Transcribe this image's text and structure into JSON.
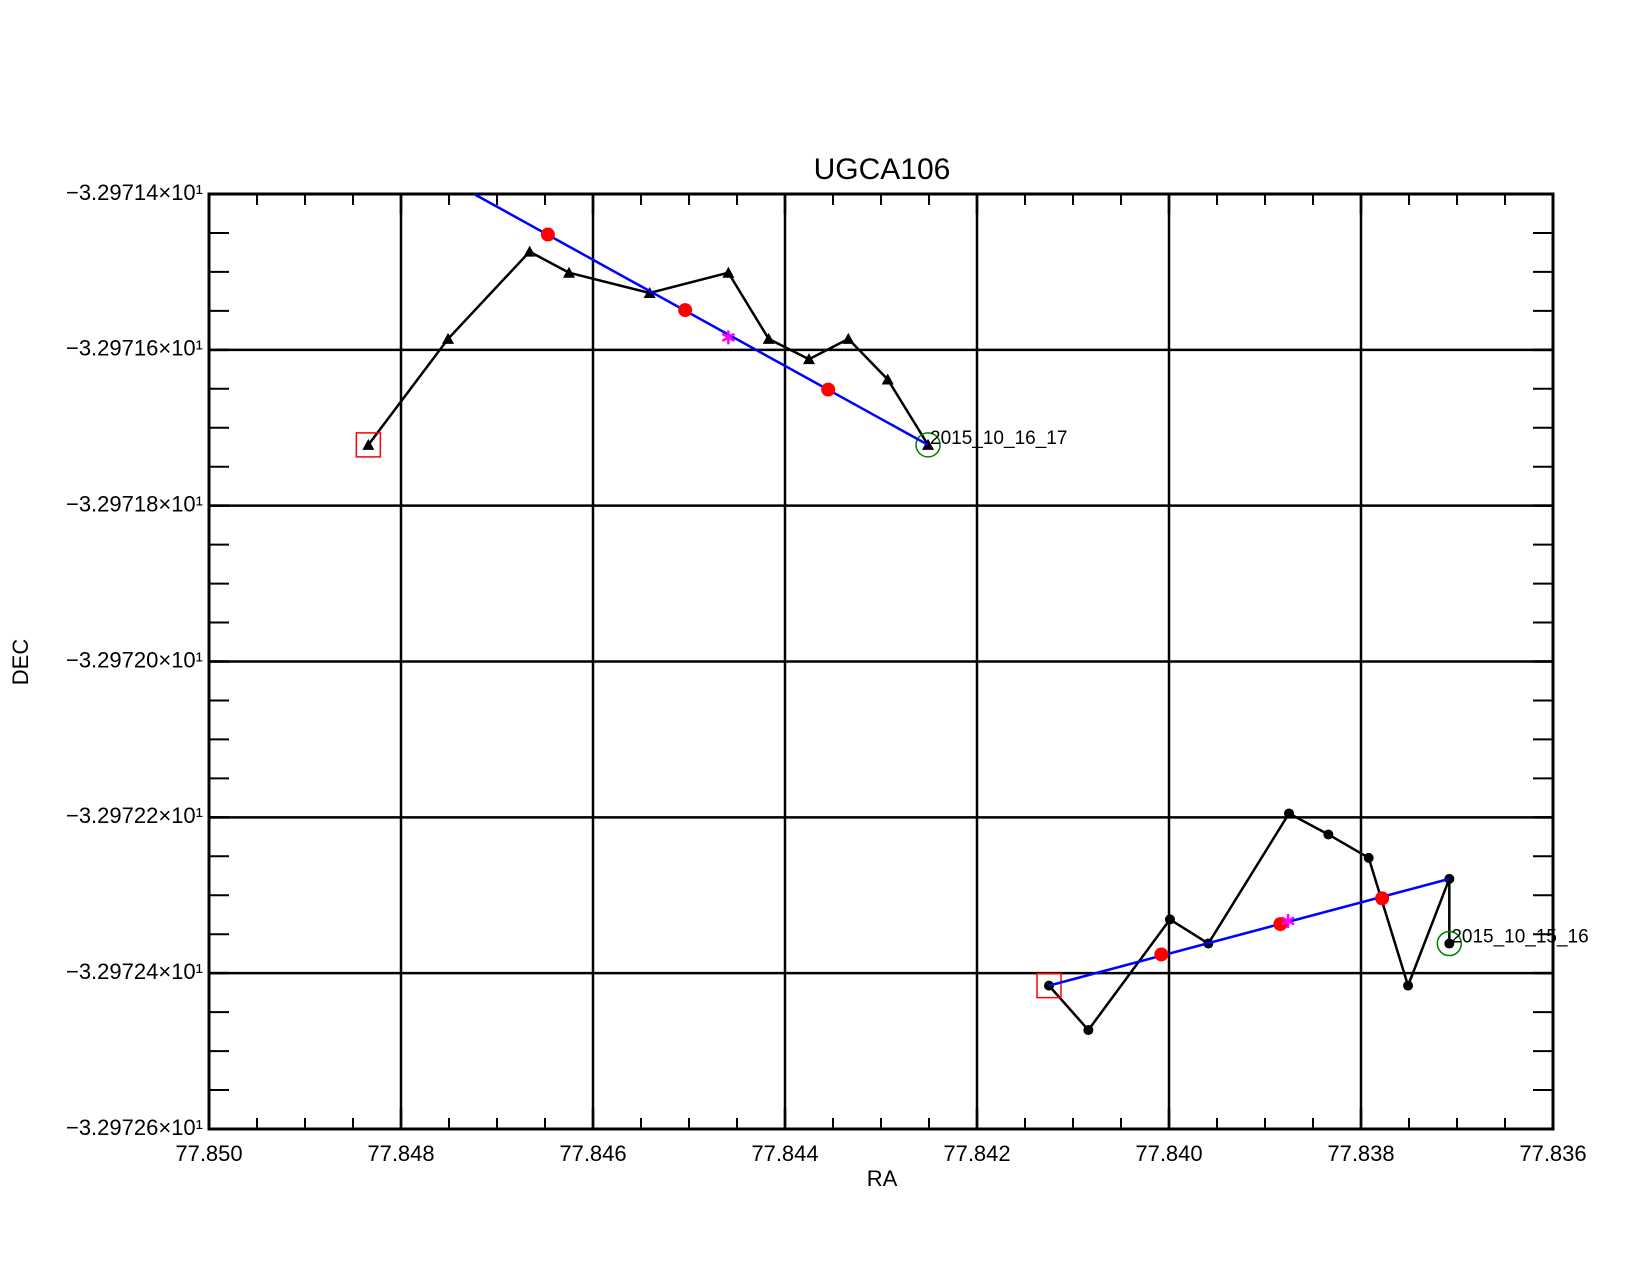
{
  "chart_data": {
    "type": "line",
    "title": "UGCA106",
    "x_label": "RA",
    "y_label": "DEC",
    "xlim": [
      77.85,
      77.836
    ],
    "xticks": [
      {
        "value": 77.85,
        "label": "77.850"
      },
      {
        "value": 77.848,
        "label": "77.848"
      },
      {
        "value": 77.846,
        "label": "77.846"
      },
      {
        "value": 77.844,
        "label": "77.844"
      },
      {
        "value": 77.842,
        "label": "77.842"
      },
      {
        "value": 77.84,
        "label": "77.840"
      },
      {
        "value": 77.838,
        "label": "77.838"
      },
      {
        "value": 77.836,
        "label": "77.836"
      }
    ],
    "ylim": [
      -32.9726,
      -32.9714
    ],
    "yticks": [
      {
        "value": -32.9726,
        "label": "−3.29726×10¹"
      },
      {
        "value": -32.9724,
        "label": "−3.29724×10¹"
      },
      {
        "value": -32.9722,
        "label": "−3.29722×10¹"
      },
      {
        "value": -32.972,
        "label": "−3.29720×10¹"
      },
      {
        "value": -32.9718,
        "label": "−3.29718×10¹"
      },
      {
        "value": -32.9716,
        "label": "−3.29716×10¹"
      },
      {
        "value": -32.9714,
        "label": "−3.29714×10¹"
      }
    ],
    "grid": true,
    "series": [
      {
        "color": "#000000",
        "marker": "triangle",
        "label": "2015_10_16_17",
        "x": [
          77.84834,
          77.84751,
          77.84666,
          77.84625,
          77.84541,
          77.84459,
          77.84417,
          77.84375,
          77.84334,
          77.84293,
          77.84251
        ],
        "values": [
          -32.971722,
          -32.971586,
          -32.971474,
          -32.971501,
          -32.971527,
          -32.971501,
          -32.971586,
          -32.971612,
          -32.971586,
          -32.971638,
          -32.971722
        ]
      },
      {
        "color": "#000000",
        "marker": "circle",
        "label": "2015_10_15_16",
        "x": [
          77.84125,
          77.84084,
          77.83999,
          77.83959,
          77.83875,
          77.83834,
          77.83792,
          77.83751,
          77.83708,
          77.83708
        ],
        "values": [
          -32.972416,
          -32.972473,
          -32.972331,
          -32.972362,
          -32.972195,
          -32.972222,
          -32.972252,
          -32.972416,
          -32.972279,
          -32.972362
        ]
      }
    ],
    "fit_lines": [
      {
        "color": "#0000ff",
        "x": [
          77.84724,
          77.84251
        ],
        "values": [
          -32.9714,
          -32.971722
        ]
      },
      {
        "color": "#0000ff",
        "x": [
          77.84125,
          77.83708
        ],
        "values": [
          -32.972416,
          -32.972279
        ]
      }
    ],
    "sample_points": {
      "color": "#ff0000",
      "x": [
        77.84647,
        77.84504,
        77.84355,
        77.84008,
        77.83884,
        77.83778
      ],
      "values": [
        -32.971452,
        -32.971549,
        -32.971651,
        -32.972376,
        -32.972337,
        -32.972304
      ]
    },
    "centers": {
      "color": "#ff00ff",
      "x": [
        77.84459,
        77.83876
      ],
      "values": [
        -32.971584,
        -32.972333
      ]
    },
    "start_color": "#ff0000",
    "end_color": "#008000"
  }
}
